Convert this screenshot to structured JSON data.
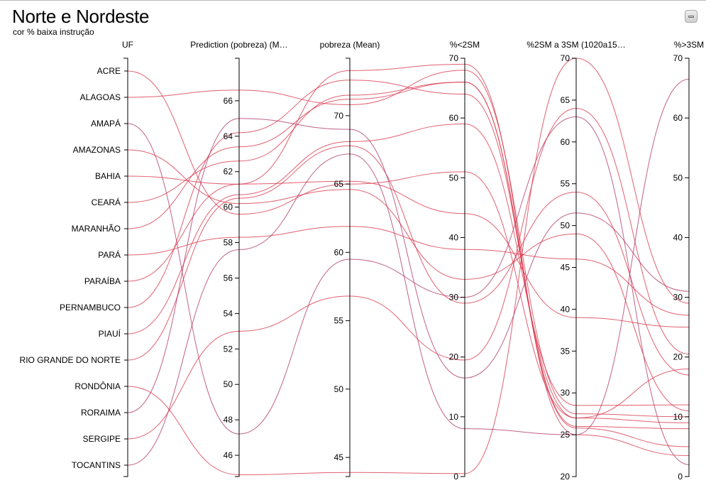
{
  "header": {
    "title": "Norte e Nordeste",
    "subtitle": "cor % baixa instrução"
  },
  "chart_data": {
    "type": "parallel-coordinates",
    "line_color": "#d8384e",
    "line_color_alt": "#b03a6a",
    "dimensions": [
      {
        "key": "UF",
        "label": "UF",
        "categorical": true,
        "categories": [
          "ACRE",
          "ALAGOAS",
          "AMAPÁ",
          "AMAZONAS",
          "BAHIA",
          "CEARÁ",
          "MARANHÃO",
          "PARÁ",
          "PARAÍBA",
          "PERNAMBUCO",
          "PIAUÍ",
          "RIO GRANDE DO NORTE",
          "RONDÔNIA",
          "RORAIMA",
          "SERGIPE",
          "TOCANTINS"
        ]
      },
      {
        "key": "pred",
        "label": "Prediction (pobreza) (M…",
        "range": [
          44.8,
          68.4
        ],
        "ticks": [
          46,
          48,
          50,
          52,
          54,
          56,
          58,
          60,
          62,
          64,
          66
        ]
      },
      {
        "key": "pob",
        "label": "pobreza (Mean)",
        "range": [
          43.6,
          74.2
        ],
        "ticks": [
          45,
          50,
          55,
          60,
          65,
          70
        ]
      },
      {
        "key": "lt2",
        "label": "%<2SM",
        "range": [
          0,
          70
        ],
        "ticks": [
          0,
          10,
          20,
          30,
          40,
          50,
          60,
          70
        ]
      },
      {
        "key": "m23",
        "label": "%2SM a 3SM (1020a15…",
        "range": [
          20,
          70
        ],
        "ticks": [
          20,
          25,
          30,
          35,
          40,
          45,
          50,
          55,
          60,
          65,
          70
        ]
      },
      {
        "key": "gt3",
        "label": "%>3SM",
        "range": [
          0,
          70
        ],
        "ticks": [
          0,
          10,
          20,
          30,
          40,
          50,
          60,
          70
        ]
      }
    ],
    "rows": [
      {
        "UF": "ACRE",
        "pred": 59.6,
        "pob": 65.0,
        "lt2": 51.0,
        "m23": 27.0,
        "gt3": 18.0,
        "alt": false
      },
      {
        "UF": "ALAGOAS",
        "pred": 66.6,
        "pob": 70.8,
        "lt2": 68.0,
        "m23": 27.5,
        "gt3": 10.0,
        "alt": false
      },
      {
        "UF": "AMAPÁ",
        "pred": 47.2,
        "pob": 59.5,
        "lt2": 30.0,
        "m23": 63.0,
        "gt3": 2.0,
        "alt": true
      },
      {
        "UF": "AMAZONAS",
        "pred": 60.2,
        "pob": 64.6,
        "lt2": 33.0,
        "m23": 49.0,
        "gt3": 11.0,
        "alt": false
      },
      {
        "UF": "BAHIA",
        "pred": 61.3,
        "pob": 65.2,
        "lt2": 44.0,
        "m23": 39.0,
        "gt3": 25.0,
        "alt": false
      },
      {
        "UF": "CEARÁ",
        "pred": 62.6,
        "pob": 71.5,
        "lt2": 66.0,
        "m23": 25.8,
        "gt3": 5.0,
        "alt": false
      },
      {
        "UF": "MARANHÃO",
        "pred": 63.4,
        "pob": 71.2,
        "lt2": 66.0,
        "m23": 26.0,
        "gt3": 8.0,
        "alt": false
      },
      {
        "UF": "PARÁ",
        "pred": 58.3,
        "pob": 61.9,
        "lt2": 38.0,
        "m23": 46.0,
        "gt3": 27.0,
        "alt": false
      },
      {
        "UF": "PARAÍBA",
        "pred": 61.3,
        "pob": 73.3,
        "lt2": 69.0,
        "m23": 25.0,
        "gt3": 3.5,
        "alt": false
      },
      {
        "UF": "PERNAMBUCO",
        "pred": 64.2,
        "pob": 72.6,
        "lt2": 64.0,
        "m23": 27.0,
        "gt3": 9.0,
        "alt": false
      },
      {
        "UF": "PIAUÍ",
        "pred": 60.7,
        "pob": 68.1,
        "lt2": 59.0,
        "m23": 28.5,
        "gt3": 12.0,
        "alt": false
      },
      {
        "UF": "RIO GRANDE DO NORTE",
        "pred": 60.5,
        "pob": 67.8,
        "lt2": 29.0,
        "m23": 54.0,
        "gt3": 17.0,
        "alt": false
      },
      {
        "UF": "RONDÔNIA",
        "pred": 44.9,
        "pob": 43.9,
        "lt2": 0.5,
        "m23": 70.0,
        "gt3": 29.0,
        "alt": false
      },
      {
        "UF": "RORAIMA",
        "pred": 65.0,
        "pob": 69.0,
        "lt2": 16.5,
        "m23": 51.5,
        "gt3": 31.0,
        "alt": true
      },
      {
        "UF": "SERGIPE",
        "pred": 53.0,
        "pob": 56.8,
        "lt2": 19.5,
        "m23": 64.0,
        "gt3": 20.5,
        "alt": false
      },
      {
        "UF": "TOCANTINS",
        "pred": 57.6,
        "pob": 67.2,
        "lt2": 8.0,
        "m23": 25.0,
        "gt3": 66.5,
        "alt": true
      }
    ]
  }
}
